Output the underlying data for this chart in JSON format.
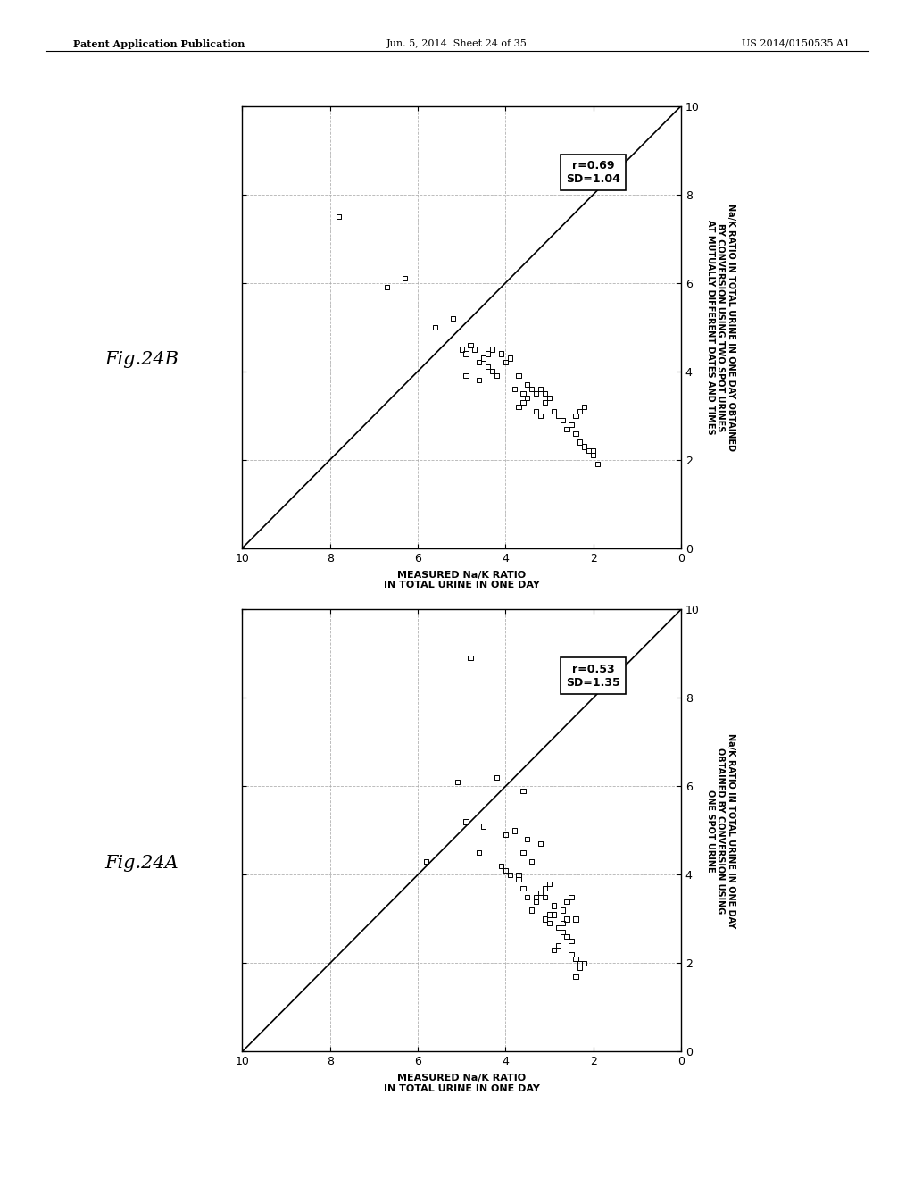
{
  "fig24A": {
    "scatter_x": [
      4.8,
      5.1,
      3.6,
      4.9,
      4.5,
      4.6,
      5.8,
      3.8,
      4.2,
      3.5,
      4.0,
      4.1,
      3.6,
      3.7,
      3.2,
      3.4,
      3.9,
      4.0,
      3.3,
      3.5,
      3.6,
      3.7,
      2.9,
      3.0,
      3.1,
      3.3,
      3.4,
      3.0,
      3.1,
      3.2,
      2.8,
      3.0,
      3.1,
      2.5,
      2.6,
      2.7,
      2.9,
      2.4,
      2.6,
      2.7,
      2.5,
      2.6,
      2.7,
      2.8,
      2.9,
      2.2,
      2.3,
      2.4,
      2.3,
      2.4,
      2.5
    ],
    "scatter_y": [
      8.9,
      6.1,
      5.9,
      5.2,
      5.1,
      4.5,
      4.3,
      5.0,
      6.2,
      4.8,
      4.1,
      4.2,
      4.5,
      3.9,
      4.7,
      4.3,
      4.0,
      4.9,
      3.5,
      3.5,
      3.7,
      4.0,
      3.3,
      3.1,
      3.5,
      3.4,
      3.2,
      3.8,
      3.7,
      3.6,
      2.8,
      2.9,
      3.0,
      3.5,
      3.4,
      3.2,
      3.1,
      3.0,
      3.0,
      2.9,
      2.5,
      2.6,
      2.7,
      2.4,
      2.3,
      2.0,
      2.0,
      1.7,
      1.9,
      2.1,
      2.2
    ],
    "r_value": "r=0.53",
    "sd_value": "SD=1.35",
    "xlabel": "MEASURED Na/K RATIO\nIN TOTAL URINE IN ONE DAY",
    "ylabel": "Na/K RATIO IN TOTAL URINE IN ONE DAY\nOBTAINED BY CONVERSION USING\nONE SPOT URINE",
    "fig_label": "Fig.24A",
    "xlim": [
      0,
      10
    ],
    "ylim": [
      0,
      10
    ],
    "xticks": [
      0,
      2,
      4,
      6,
      8,
      10
    ],
    "yticks": [
      0,
      2,
      4,
      6,
      8,
      10
    ]
  },
  "fig24B": {
    "scatter_x": [
      7.8,
      6.3,
      6.7,
      5.6,
      5.2,
      4.7,
      4.8,
      4.9,
      4.4,
      4.5,
      4.6,
      4.3,
      5.0,
      4.9,
      4.0,
      4.1,
      4.2,
      3.8,
      3.9,
      4.3,
      4.4,
      4.5,
      4.6,
      3.6,
      3.7,
      3.5,
      3.3,
      3.4,
      3.5,
      3.6,
      3.7,
      3.1,
      3.2,
      3.0,
      3.1,
      3.2,
      3.3,
      2.8,
      2.9,
      2.6,
      2.7,
      2.4,
      2.5,
      2.2,
      2.3,
      2.2,
      2.3,
      2.4,
      2.0,
      2.1,
      1.9,
      2.0
    ],
    "scatter_y": [
      7.5,
      6.1,
      5.9,
      5.0,
      5.2,
      4.5,
      4.6,
      3.9,
      4.1,
      4.3,
      3.8,
      4.0,
      4.5,
      4.4,
      4.2,
      4.4,
      3.9,
      3.6,
      4.3,
      4.5,
      4.4,
      4.3,
      4.2,
      3.5,
      3.9,
      3.7,
      3.5,
      3.6,
      3.4,
      3.3,
      3.2,
      3.5,
      3.6,
      3.4,
      3.3,
      3.0,
      3.1,
      3.0,
      3.1,
      2.7,
      2.9,
      2.6,
      2.8,
      2.3,
      2.4,
      3.2,
      3.1,
      3.0,
      2.1,
      2.2,
      1.9,
      2.2
    ],
    "r_value": "r=0.69",
    "sd_value": "SD=1.04",
    "xlabel": "MEASURED Na/K RATIO\nIN TOTAL URINE IN ONE DAY",
    "ylabel": "Na/K RATIO IN TOTAL URINE IN ONE DAY OBTAINED\nBY CONVERSION USING TWO SPOT URINES\nAT MUTUALLY DIFFERENT DATES AND TIMES",
    "fig_label": "Fig.24B",
    "xlim": [
      0,
      10
    ],
    "ylim": [
      0,
      10
    ],
    "xticks": [
      0,
      2,
      4,
      6,
      8,
      10
    ],
    "yticks": [
      0,
      2,
      4,
      6,
      8,
      10
    ]
  },
  "header_left": "Patent Application Publication",
  "header_mid": "Jun. 5, 2014  Sheet 24 of 35",
  "header_right": "US 2014/0150535 A1",
  "background_color": "#ffffff",
  "scatter_color": "#000000",
  "line_color": "#000000",
  "grid_color": "#aaaaaa",
  "box_annotation_color": "#000000"
}
